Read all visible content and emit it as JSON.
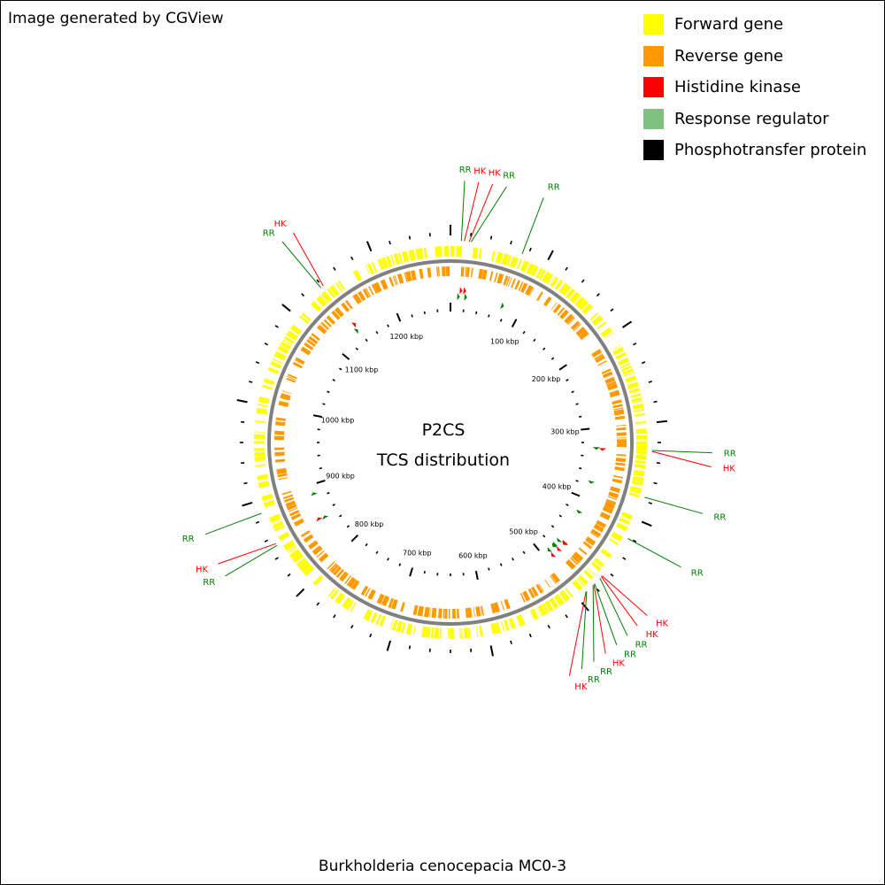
{
  "credit": "Image generated by CGView",
  "caption": "Burkholderia cenocepacia MC0-3",
  "center_title": "P2CS",
  "center_subtitle": "TCS distribution",
  "legend": [
    {
      "label": "Forward gene",
      "color": "#ffff00"
    },
    {
      "label": "Reverse gene",
      "color": "#ff9900"
    },
    {
      "label": "Histidine kinase",
      "color": "#ff0000"
    },
    {
      "label": "Response regulator",
      "color": "#80c080"
    },
    {
      "label": "Phosphotransfer protein",
      "color": "#000000"
    }
  ],
  "colors": {
    "forward": "#ffff00",
    "reverse": "#ff9900",
    "backbone": "#808080",
    "hk": "#ff0000",
    "rr_label": "#008000",
    "rr_arrow": "#008000",
    "tick": "#000000"
  },
  "genome": {
    "length_kbp": 1280,
    "tick_labels": [
      {
        "text": "100 kbp",
        "kbp": 100
      },
      {
        "text": "200 kbp",
        "kbp": 200
      },
      {
        "text": "300 kbp",
        "kbp": 300
      },
      {
        "text": "400 kbp",
        "kbp": 400
      },
      {
        "text": "500 kbp",
        "kbp": 500
      },
      {
        "text": "600 kbp",
        "kbp": 600
      },
      {
        "text": "700 kbp",
        "kbp": 700
      },
      {
        "text": "800 kbp",
        "kbp": 800
      },
      {
        "text": "900 kbp",
        "kbp": 900
      },
      {
        "text": "1000 kbp",
        "kbp": 1000
      },
      {
        "text": "1100 kbp",
        "kbp": 1100
      },
      {
        "text": "1200 kbp",
        "kbp": 1200
      }
    ]
  },
  "features": [
    {
      "type": "HK",
      "label": "HK",
      "kbp": 14
    },
    {
      "type": "RR",
      "label": "RR",
      "kbp": 11
    },
    {
      "type": "HK",
      "label": "HK",
      "kbp": 19
    },
    {
      "type": "RR",
      "label": "RR",
      "kbp": 21
    },
    {
      "type": "RR",
      "label": "RR",
      "kbp": 74
    },
    {
      "type": "RR",
      "label": "RR",
      "kbp": 328
    },
    {
      "type": "HK",
      "label": "HK",
      "kbp": 329
    },
    {
      "type": "RR",
      "label": "RR",
      "kbp": 376
    },
    {
      "type": "RR",
      "label": "RR",
      "kbp": 421
    },
    {
      "type": "HK",
      "label": "HK",
      "kbp": 467
    },
    {
      "type": "HK",
      "label": "HK",
      "kbp": 468
    },
    {
      "type": "RR",
      "label": "RR",
      "kbp": 470
    },
    {
      "type": "RR",
      "label": "RR",
      "kbp": 478
    },
    {
      "type": "HK",
      "label": "HK",
      "kbp": 479
    },
    {
      "type": "RR",
      "label": "RR",
      "kbp": 480
    },
    {
      "type": "HK",
      "label": "HK",
      "kbp": 490
    },
    {
      "type": "RR",
      "label": "RR",
      "kbp": 489
    },
    {
      "type": "RR",
      "label": "RR",
      "kbp": 887
    },
    {
      "type": "HK",
      "label": "HK",
      "kbp": 853
    },
    {
      "type": "RR",
      "label": "RR",
      "kbp": 851
    },
    {
      "type": "RR",
      "label": "RR",
      "kbp": 1138
    },
    {
      "type": "HK",
      "label": "HK",
      "kbp": 1141
    }
  ]
}
